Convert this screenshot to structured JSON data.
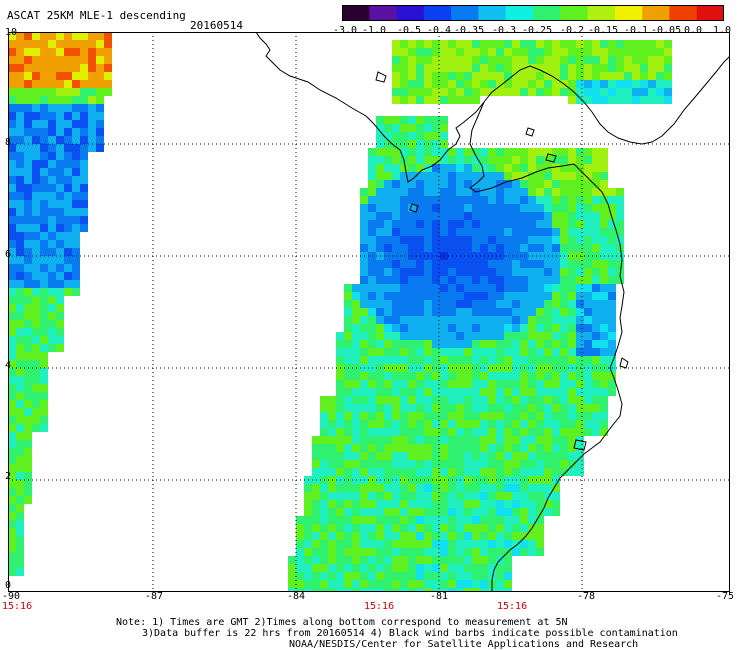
{
  "header": {
    "title": "ASCAT 25KM MLE-1 descending",
    "date": "20160514"
  },
  "colorbar": {
    "labels": [
      "-3.0",
      "-1.0",
      "-0.5",
      "-0.4",
      "-0.35",
      "-0.3",
      "-0.25",
      "-0.2",
      "-0.15",
      "-0.1",
      "-0.05",
      "0.0",
      "1.0"
    ],
    "colors": [
      "#2a0030",
      "#5a10a0",
      "#2a10d0",
      "#0a40f0",
      "#0a7af0",
      "#10c0f0",
      "#10f0e0",
      "#30f070",
      "#60f020",
      "#b0f010",
      "#f0f000",
      "#f0a000",
      "#f04000",
      "#e01010"
    ]
  },
  "axes": {
    "y_ticks": [
      "10",
      "8",
      "6",
      "4",
      "2",
      "0"
    ],
    "x_ticks": [
      "-90",
      "-87",
      "-84",
      "-81",
      "-78",
      "-75"
    ],
    "times": [
      "15:16",
      "15:16",
      "15:16"
    ],
    "lat_range": [
      0,
      10
    ],
    "lon_range": [
      -90,
      -75
    ],
    "grid": "dotted"
  },
  "notes": {
    "line1": "Note: 1) Times are GMT 2)Times along bottom correspond to measurement at 5N",
    "line2": "3)Data buffer is 22 hrs from 20160514 4) Black wind barbs indicate possible contamination",
    "line3": "NOAA/NESDIS/Center for Satellite Applications and Research"
  },
  "colors": {
    "grid": "#000000",
    "time_text": "#cc0000",
    "coast": "#000000"
  }
}
